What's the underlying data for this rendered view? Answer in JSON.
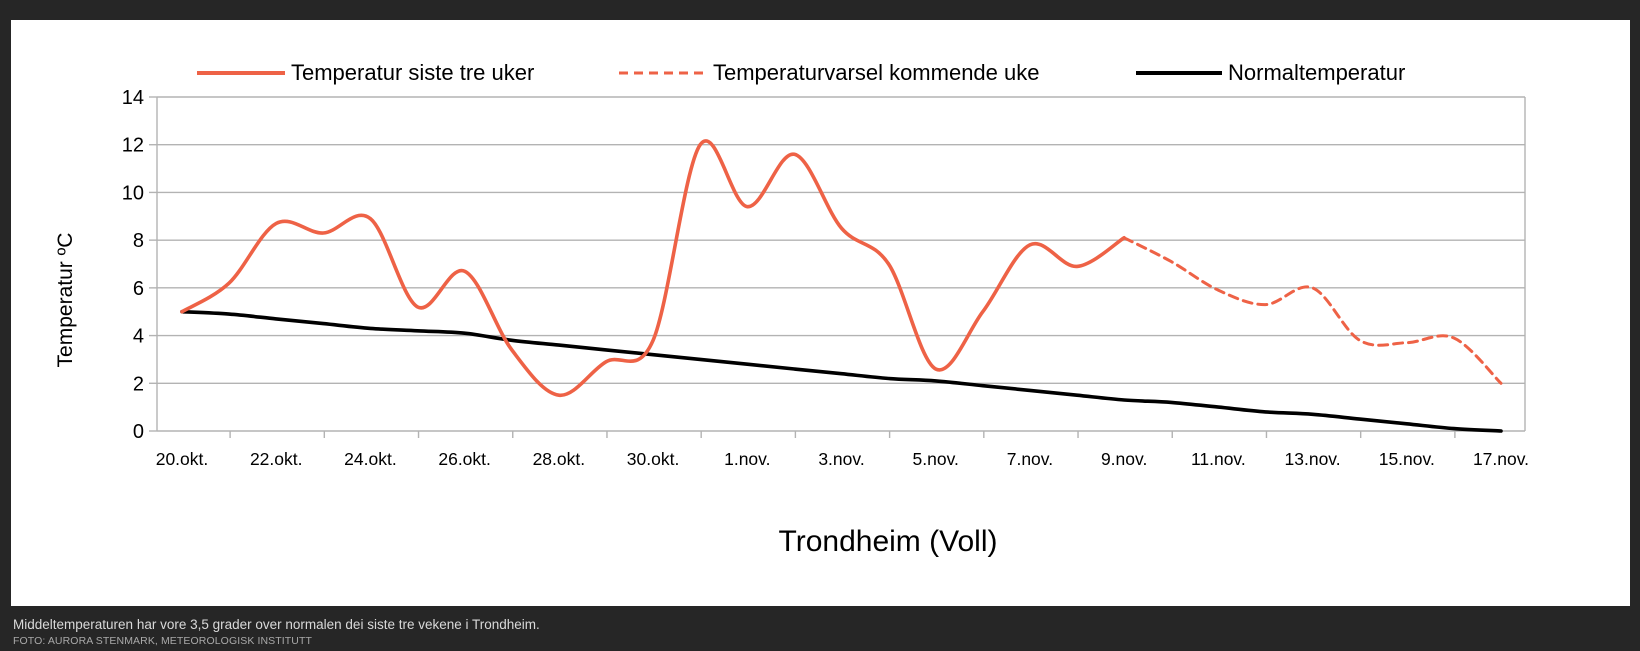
{
  "article": {
    "caption": "Middeltemperaturen har vore 3,5 grader over normalen dei siste tre vekene i Trondheim.",
    "credit": "FOTO: AURORA STENMARK, METEOROLOGISK INSTITUTT"
  },
  "colors": {
    "observed": "#ee6246",
    "forecast": "#ee6246",
    "normal": "#000000",
    "grid": "#b3b3b3"
  },
  "chart_data": {
    "type": "line",
    "title": "",
    "xlabel": "Trondheim (Voll)",
    "ylabel": "Temperatur ºC",
    "ylim": [
      0,
      14
    ],
    "yticks": [
      0,
      2,
      4,
      6,
      8,
      10,
      12,
      14
    ],
    "grid": true,
    "legend_position": "top",
    "x_tick_labels": [
      "20.okt.",
      "22.okt.",
      "24.okt.",
      "26.okt.",
      "28.okt.",
      "30.okt.",
      "1.nov.",
      "3.nov.",
      "5.nov.",
      "7.nov.",
      "9.nov.",
      "11.nov.",
      "13.nov.",
      "15.nov.",
      "17.nov."
    ],
    "series": [
      {
        "name": "Temperatur siste tre uker",
        "style": "solid",
        "x": [
          "20.okt.",
          "21.okt.",
          "22.okt.",
          "23.okt.",
          "24.okt.",
          "25.okt.",
          "26.okt.",
          "27.okt.",
          "28.okt.",
          "29.okt.",
          "30.okt.",
          "31.okt.",
          "1.nov.",
          "2.nov.",
          "3.nov.",
          "4.nov.",
          "5.nov.",
          "6.nov.",
          "7.nov.",
          "8.nov.",
          "9.nov."
        ],
        "values": [
          5.0,
          6.2,
          8.7,
          8.3,
          8.9,
          5.2,
          6.7,
          3.4,
          1.5,
          2.9,
          3.8,
          12.0,
          9.4,
          11.6,
          8.5,
          7.0,
          2.6,
          5.0,
          7.8,
          6.9,
          8.1
        ]
      },
      {
        "name": "Temperaturvarsel kommende uke",
        "style": "dashed",
        "x": [
          "9.nov.",
          "10.nov.",
          "11.nov.",
          "12.nov.",
          "13.nov.",
          "14.nov.",
          "15.nov.",
          "16.nov.",
          "17.nov."
        ],
        "values": [
          8.1,
          7.1,
          5.9,
          5.3,
          6.0,
          3.8,
          3.7,
          3.9,
          2.0
        ]
      },
      {
        "name": "Normaltemperatur",
        "style": "solid",
        "x": [
          "20.okt.",
          "21.okt.",
          "22.okt.",
          "23.okt.",
          "24.okt.",
          "25.okt.",
          "26.okt.",
          "27.okt.",
          "28.okt.",
          "29.okt.",
          "30.okt.",
          "31.okt.",
          "1.nov.",
          "2.nov.",
          "3.nov.",
          "4.nov.",
          "5.nov.",
          "6.nov.",
          "7.nov.",
          "8.nov.",
          "9.nov.",
          "10.nov.",
          "11.nov.",
          "12.nov.",
          "13.nov.",
          "14.nov.",
          "15.nov.",
          "16.nov.",
          "17.nov."
        ],
        "values": [
          5.0,
          4.9,
          4.7,
          4.5,
          4.3,
          4.2,
          4.1,
          3.8,
          3.6,
          3.4,
          3.2,
          3.0,
          2.8,
          2.6,
          2.4,
          2.2,
          2.1,
          1.9,
          1.7,
          1.5,
          1.3,
          1.2,
          1.0,
          0.8,
          0.7,
          0.5,
          0.3,
          0.1,
          0.0
        ]
      }
    ]
  }
}
